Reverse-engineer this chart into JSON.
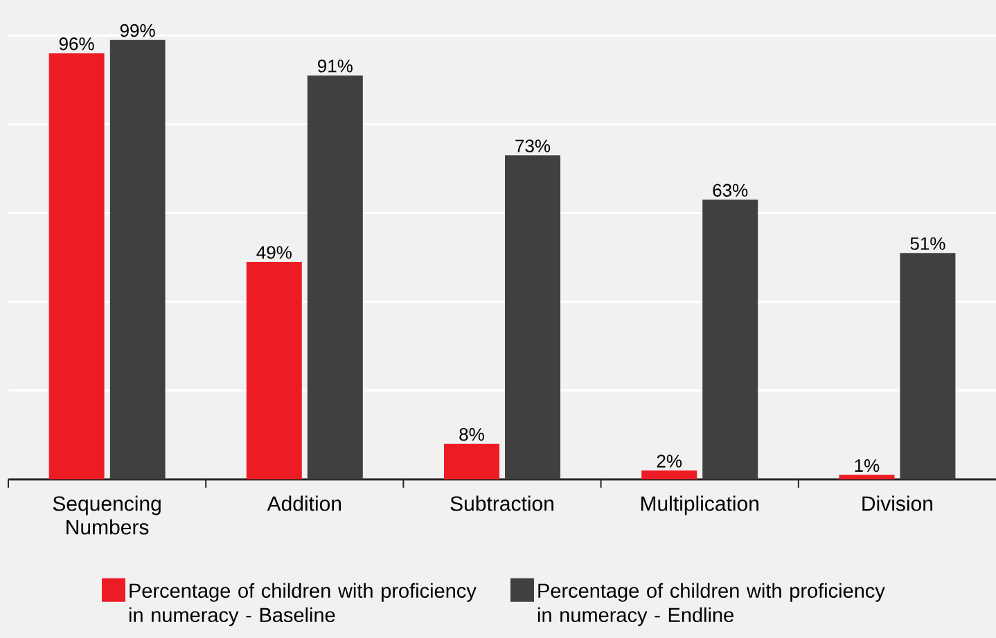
{
  "chart_data": {
    "type": "bar",
    "categories": [
      "Sequencing Numbers",
      "Addition",
      "Subtraction",
      "Multiplication",
      "Division"
    ],
    "series": [
      {
        "name": "Percentage of children with proficiency in numeracy - Baseline",
        "color": "#ed1c24",
        "values": [
          96,
          49,
          8,
          2,
          1
        ],
        "value_labels": [
          "96%",
          "49%",
          "8%",
          "2%",
          "1%"
        ]
      },
      {
        "name": "Percentage of children with proficiency in numeracy - Endline",
        "color": "#404041",
        "values": [
          99,
          91,
          73,
          63,
          51
        ],
        "value_labels": [
          "99%",
          "91%",
          "73%",
          "63%",
          "51%"
        ]
      }
    ],
    "ylim": [
      0,
      108
    ],
    "yticks": [
      {
        "value": 20,
        "label": null
      },
      {
        "value": 40,
        "label": null
      },
      {
        "value": 60,
        "label": null
      },
      {
        "value": 80,
        "label": null
      },
      {
        "value": 100,
        "label": null
      }
    ],
    "grid": "y",
    "tick_labels": "x",
    "legend": "bottom"
  }
}
